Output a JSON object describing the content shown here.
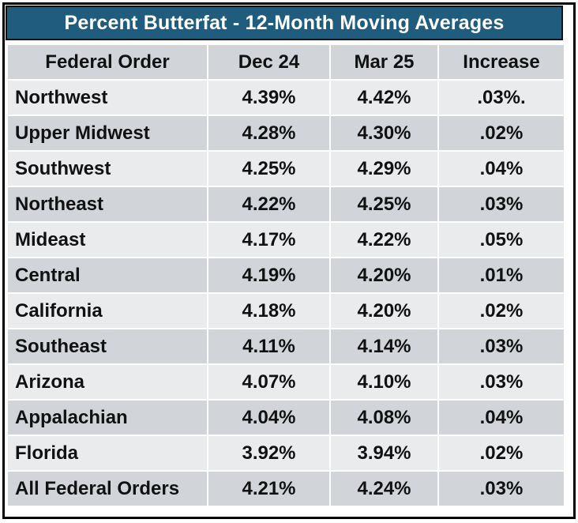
{
  "chart_data": {
    "type": "table",
    "title": "Percent Butterfat - 12-Month Moving Averages",
    "columns": [
      "Federal Order",
      "Dec 24",
      "Mar 25",
      "Increase"
    ],
    "rows": [
      [
        "Northwest",
        "4.39%",
        "4.42%",
        ".03%."
      ],
      [
        "Upper Midwest",
        "4.28%",
        "4.30%",
        ".02%"
      ],
      [
        "Southwest",
        "4.25%",
        "4.29%",
        ".04%"
      ],
      [
        "Northeast",
        "4.22%",
        "4.25%",
        ".03%"
      ],
      [
        "Mideast",
        "4.17%",
        "4.22%",
        ".05%"
      ],
      [
        "Central",
        "4.19%",
        "4.20%",
        ".01%"
      ],
      [
        "California",
        "4.18%",
        "4.20%",
        ".02%"
      ],
      [
        "Southeast",
        "4.11%",
        "4.14%",
        ".03%"
      ],
      [
        "Arizona",
        "4.07%",
        "4.10%",
        ".03%"
      ],
      [
        "Appalachian",
        "4.04%",
        "4.08%",
        ".04%"
      ],
      [
        "Florida",
        "3.92%",
        "3.94%",
        ".02%"
      ],
      [
        "All Federal Orders",
        "4.21%",
        "4.24%",
        ".03%"
      ]
    ]
  },
  "colors": {
    "title_bg": "#1f5c7e",
    "title_text": "#ffffff",
    "header_bg": "#d1d5da",
    "row_light": "#e9ebed",
    "row_dark": "#d1d5da"
  }
}
